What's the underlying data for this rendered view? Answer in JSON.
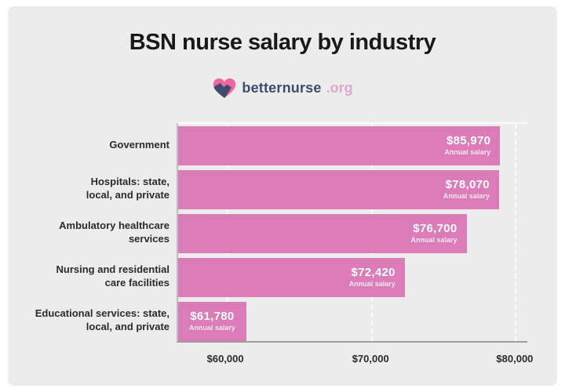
{
  "page": {
    "background_color": "#FFFFFF",
    "card_color": "#ECECEC"
  },
  "header": {
    "title": "BSN nurse salary by industry"
  },
  "logo": {
    "brand": "betternurse",
    "tld": ".org",
    "heart_color": "#EF679D",
    "accent_color": "#3D4C6F",
    "brand_color": "#3D4C6F",
    "tld_color": "#E0A6CB"
  },
  "chart_data": {
    "type": "bar",
    "orientation": "horizontal",
    "title": "BSN nurse salary by industry",
    "categories": [
      "Government",
      "Hospitals: state, local, and private",
      "Ambulatory healthcare services",
      "Nursing and residential care facilities",
      "Educational services: state, local, and private"
    ],
    "category_label_lines": [
      [
        "Government"
      ],
      [
        "Hospitals: state,",
        "local, and private"
      ],
      [
        "Ambulatory healthcare",
        "services"
      ],
      [
        "Nursing and residential",
        "care facilities"
      ],
      [
        "Educational services: state,",
        "local, and private"
      ]
    ],
    "values": [
      85970,
      78070,
      76700,
      72420,
      61780
    ],
    "value_labels": [
      "$85,970",
      "$78,070",
      "$76,700",
      "$72,420",
      "$61,780"
    ],
    "value_sublabel": "Annual salary",
    "bar_color": "#DB7CB9",
    "xlabel": "",
    "ylabel": "",
    "x_ticks": [
      "$60,000",
      "$70,000",
      "$80,000"
    ],
    "x_tick_values": [
      60000,
      70000,
      80000
    ],
    "grid": "dashed-vertical-white",
    "legend": "none",
    "layout_hints": {
      "x_tick_pct": [
        13.9,
        55.3,
        96.4
      ],
      "bar_width_pct": [
        92.2,
        91.9,
        82.6,
        64.9,
        19.5
      ],
      "short_bar_centered_label_index": 4
    }
  }
}
